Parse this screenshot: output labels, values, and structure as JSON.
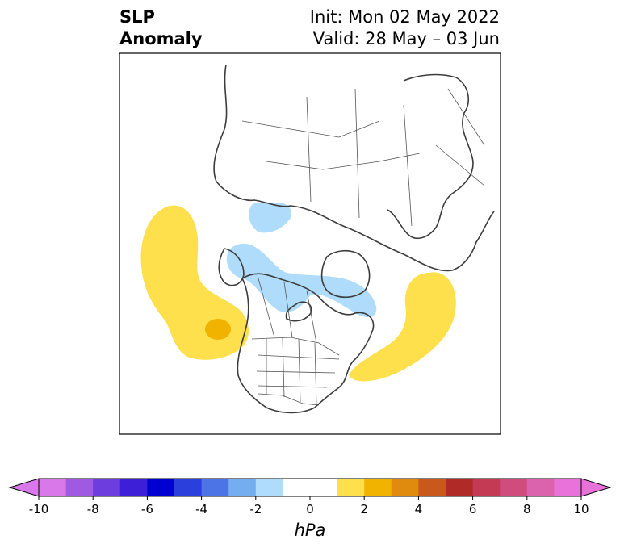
{
  "header": {
    "title_line1": "SLP",
    "title_line2": "Anomaly",
    "init_text": "Init: Mon 02 May 2022",
    "valid_text": "Valid: 28 May – 03 Jun"
  },
  "map": {
    "projection": "polar stereographic (north pole)",
    "features": [
      "coastlines",
      "country-borders",
      "us-state-borders"
    ]
  },
  "colorbar": {
    "unit_label": "hPa",
    "tick_labels": [
      "-10",
      "-8",
      "-6",
      "-4",
      "-2",
      "0",
      "2",
      "4",
      "6",
      "8",
      "10"
    ],
    "bins": [
      {
        "color": "#d978e8"
      },
      {
        "color": "#a05ae2"
      },
      {
        "color": "#6d3ddd"
      },
      {
        "color": "#3d1fd8"
      },
      {
        "color": "#0000d0"
      },
      {
        "color": "#2b3fdd"
      },
      {
        "color": "#4d74e6"
      },
      {
        "color": "#74aef0"
      },
      {
        "color": "#aedcfa"
      },
      {
        "color": "#ffffff"
      },
      {
        "color": "#ffffff"
      },
      {
        "color": "#fde04c"
      },
      {
        "color": "#f1b300"
      },
      {
        "color": "#e08a0e"
      },
      {
        "color": "#c9581d"
      },
      {
        "color": "#b02a28"
      },
      {
        "color": "#c43a55"
      },
      {
        "color": "#cf4c7c"
      },
      {
        "color": "#db62ad"
      },
      {
        "color": "#e872d8"
      }
    ]
  }
}
